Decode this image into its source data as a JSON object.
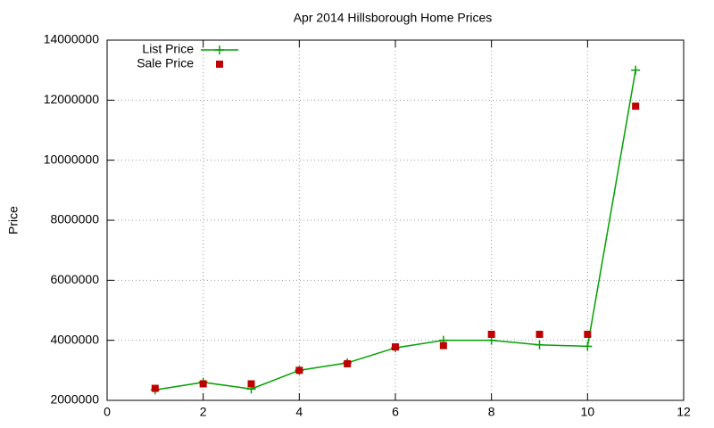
{
  "chart_data": {
    "type": "line",
    "title": "Apr 2014 Hillsborough Home Prices",
    "y_label": "Price",
    "x": [
      1,
      2,
      3,
      4,
      5,
      6,
      7,
      8,
      9,
      10,
      11
    ],
    "series": [
      {
        "name": "List Price",
        "color": "#00a000",
        "style": "linespoints",
        "values": [
          2350000,
          2600000,
          2380000,
          3000000,
          3250000,
          3750000,
          4000000,
          4000000,
          3850000,
          3800000,
          13000000
        ]
      },
      {
        "name": "Sale Price",
        "color": "#c00000",
        "style": "points",
        "values": [
          2400000,
          2550000,
          2550000,
          3000000,
          3220000,
          3780000,
          3825000,
          4200000,
          4200000,
          4200000,
          11800000
        ]
      }
    ],
    "xlim": [
      0,
      12
    ],
    "xticks": [
      0,
      2,
      4,
      6,
      8,
      10,
      12
    ],
    "ylim": [
      2000000,
      14000000
    ],
    "yticks": [
      2000000,
      4000000,
      6000000,
      8000000,
      10000000,
      12000000,
      14000000
    ],
    "grid": true,
    "legend": "top-left"
  }
}
